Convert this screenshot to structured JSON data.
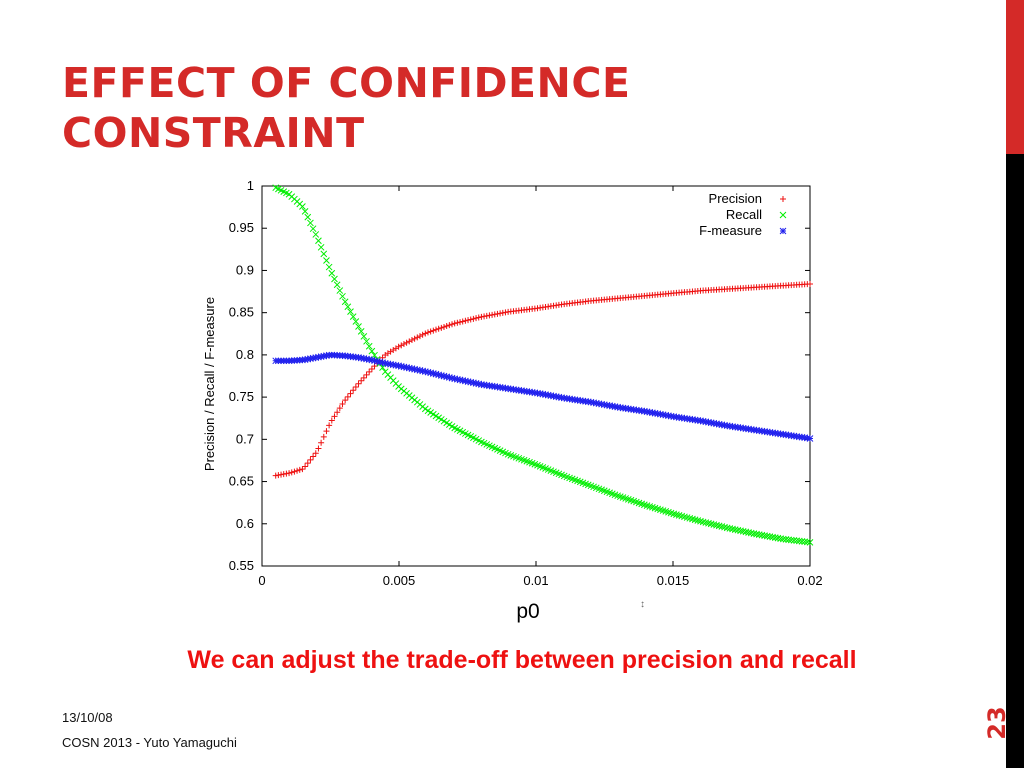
{
  "slide": {
    "title_line1": "EFFECT OF CONFIDENCE",
    "title_line2": "CONSTRAINT",
    "caption": "We can adjust the trade-off between precision and recall",
    "footer_date": "13/10/08",
    "footer_author": "COSN 2013 - Yuto Yamaguchi",
    "page_number": "23",
    "cursor_glyph": "↕"
  },
  "colors": {
    "title": "#d42a28",
    "caption": "#ee1111",
    "precision": "#ee1111",
    "recall": "#00ee00",
    "fmeasure": "#2222ee"
  },
  "chart_data": {
    "type": "scatter",
    "xlabel": "p0",
    "ylabel": "Precision / Recall / F-measure",
    "xlim": [
      0,
      0.02
    ],
    "ylim": [
      0.55,
      1
    ],
    "x_ticks": [
      0,
      0.005,
      0.01,
      0.015,
      0.02
    ],
    "x_tick_labels": [
      "0",
      "0.005",
      "0.01",
      "0.015",
      "0.02"
    ],
    "y_ticks": [
      0.55,
      0.6,
      0.65,
      0.7,
      0.75,
      0.8,
      0.85,
      0.9,
      0.95,
      1
    ],
    "y_tick_labels": [
      "0.55",
      "0.6",
      "0.65",
      "0.7",
      "0.75",
      "0.8",
      "0.85",
      "0.9",
      "0.95",
      "1"
    ],
    "grid": false,
    "legend_position": "top-right",
    "x": [
      0.0005,
      0.001,
      0.0015,
      0.002,
      0.0025,
      0.003,
      0.0035,
      0.004,
      0.0045,
      0.005,
      0.006,
      0.007,
      0.008,
      0.009,
      0.01,
      0.011,
      0.012,
      0.013,
      0.014,
      0.015,
      0.016,
      0.017,
      0.018,
      0.019,
      0.02
    ],
    "series": [
      {
        "name": "Precision",
        "marker": "+",
        "color": "#ee1111",
        "values": [
          0.657,
          0.66,
          0.665,
          0.685,
          0.72,
          0.745,
          0.765,
          0.783,
          0.8,
          0.81,
          0.826,
          0.837,
          0.845,
          0.851,
          0.855,
          0.86,
          0.864,
          0.867,
          0.87,
          0.873,
          0.876,
          0.878,
          0.88,
          0.882,
          0.884
        ]
      },
      {
        "name": "Recall",
        "marker": "x",
        "color": "#00ee00",
        "values": [
          0.998,
          0.99,
          0.975,
          0.94,
          0.9,
          0.865,
          0.835,
          0.805,
          0.78,
          0.762,
          0.735,
          0.714,
          0.697,
          0.682,
          0.67,
          0.657,
          0.645,
          0.633,
          0.622,
          0.612,
          0.603,
          0.595,
          0.588,
          0.582,
          0.578
        ]
      },
      {
        "name": "F-measure",
        "marker": "*",
        "color": "#2222ee",
        "values": [
          0.793,
          0.793,
          0.794,
          0.797,
          0.8,
          0.799,
          0.797,
          0.794,
          0.79,
          0.787,
          0.78,
          0.772,
          0.765,
          0.76,
          0.755,
          0.749,
          0.744,
          0.738,
          0.733,
          0.727,
          0.722,
          0.716,
          0.711,
          0.706,
          0.701
        ]
      }
    ]
  }
}
